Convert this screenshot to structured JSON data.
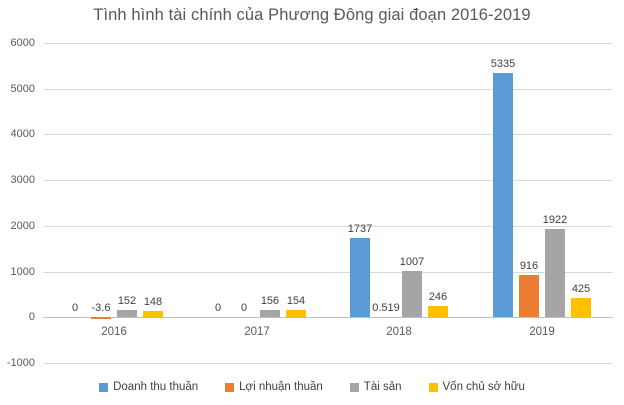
{
  "chart_data": {
    "type": "bar",
    "title": "Tình hình tài chính của Phương Đông giai đoạn 2016-2019",
    "categories": [
      "2016",
      "2017",
      "2018",
      "2019"
    ],
    "series": [
      {
        "name": "Doanh thu thuần",
        "color": "#5b9bd5",
        "values": [
          0,
          0,
          1737,
          5335
        ],
        "labels": [
          "0",
          "0",
          "1737",
          "5335"
        ]
      },
      {
        "name": "Lợi nhuận thuần",
        "color": "#ed7d31",
        "values": [
          -3.6,
          0,
          0.519,
          916
        ],
        "labels": [
          "-3.6",
          "0",
          "0.519",
          "916"
        ]
      },
      {
        "name": "Tài sản",
        "color": "#a5a5a5",
        "values": [
          152,
          156,
          1007,
          1922
        ],
        "labels": [
          "152",
          "156",
          "1007",
          "1922"
        ]
      },
      {
        "name": "Vốn chủ sở hữu",
        "color": "#ffc000",
        "values": [
          148,
          154,
          246,
          425
        ],
        "labels": [
          "148",
          "154",
          "246",
          "425"
        ]
      }
    ],
    "ylim": [
      -1000,
      6000
    ],
    "yticks": [
      6000,
      5000,
      4000,
      3000,
      2000,
      1000,
      0,
      -1000
    ],
    "grid": true,
    "legend_position": "bottom",
    "colors": {
      "gridline": "#d9d9d9",
      "zero_axis": "#bfbfbf",
      "title_text": "#595959",
      "tick_text": "#595959",
      "value_label_text": "#404040"
    }
  }
}
